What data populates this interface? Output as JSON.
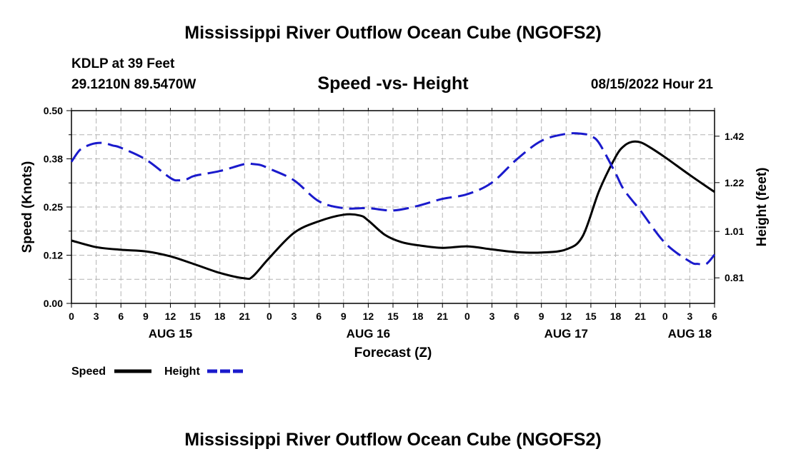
{
  "page": {
    "title": "Mississippi River Outflow Ocean Cube (NGOFS2)",
    "footer_title": "Mississippi River Outflow Ocean Cube (NGOFS2)",
    "station": "KDLP at 39 Feet",
    "coords": "29.1210N  89.5470W",
    "subtitle": "Speed -vs- Height",
    "datetime": "08/15/2022 Hour 21"
  },
  "colors": {
    "speed": "#000000",
    "height": "#1a1acc",
    "grid": "#b4b4b4"
  },
  "chart_data": {
    "type": "line",
    "title": "Speed -vs- Height",
    "xlabel": "Forecast (Z)",
    "ylabel": "Speed (Knots)",
    "y2label": "Height (feet)",
    "xlim": [
      0,
      78
    ],
    "ylim": [
      0,
      0.5
    ],
    "y2lim": [
      0.7,
      1.53
    ],
    "x_ticks": [
      0,
      3,
      6,
      9,
      12,
      15,
      18,
      21,
      24,
      27,
      30,
      33,
      36,
      39,
      42,
      45,
      48,
      51,
      54,
      57,
      60,
      63,
      66,
      69,
      72,
      75,
      78
    ],
    "x_tick_labels": [
      "0",
      "3",
      "6",
      "9",
      "12",
      "15",
      "18",
      "21",
      "0",
      "3",
      "6",
      "9",
      "12",
      "15",
      "18",
      "21",
      "0",
      "3",
      "6",
      "9",
      "12",
      "15",
      "18",
      "21",
      "0",
      "3",
      "6"
    ],
    "y_ticks": [
      0,
      0.125,
      0.25,
      0.375,
      0.5
    ],
    "y_tick_labels": [
      "0.00",
      "0.12",
      "0.25",
      "0.38",
      "0.50"
    ],
    "y2_ticks": [
      0.81,
      1.01,
      1.22,
      1.42
    ],
    "y2_tick_labels": [
      "0.81",
      "1.01",
      "1.22",
      "1.42"
    ],
    "day_labels": [
      {
        "x": 12,
        "label": "AUG 15"
      },
      {
        "x": 36,
        "label": "AUG 16"
      },
      {
        "x": 60,
        "label": "AUG 17"
      },
      {
        "x": 75,
        "label": "AUG 18"
      }
    ],
    "legend": [
      {
        "name": "Speed",
        "style": "solid"
      },
      {
        "name": "Height",
        "style": "dashed"
      }
    ],
    "series": [
      {
        "name": "Speed",
        "axis": "left",
        "style": "solid",
        "x": [
          0,
          3,
          6,
          9,
          12,
          15,
          18,
          21,
          22,
          24,
          27,
          30,
          33,
          35,
          36,
          38,
          40,
          42,
          45,
          48,
          51,
          54,
          57,
          60,
          62,
          64,
          66,
          67,
          68,
          69,
          70,
          72,
          75,
          78
        ],
        "values": [
          0.163,
          0.146,
          0.139,
          0.135,
          0.122,
          0.101,
          0.079,
          0.065,
          0.07,
          0.118,
          0.183,
          0.213,
          0.23,
          0.228,
          0.215,
          0.178,
          0.159,
          0.151,
          0.144,
          0.148,
          0.14,
          0.133,
          0.132,
          0.14,
          0.174,
          0.292,
          0.38,
          0.408,
          0.419,
          0.418,
          0.407,
          0.379,
          0.333,
          0.289
        ]
      },
      {
        "name": "Height",
        "axis": "right",
        "style": "dashed",
        "x": [
          0,
          1,
          2,
          3,
          4,
          5,
          6,
          9,
          12,
          13,
          14,
          15,
          18,
          21,
          22,
          23,
          24,
          27,
          30,
          33,
          36,
          39,
          42,
          45,
          48,
          51,
          54,
          57,
          60,
          62,
          63,
          64,
          66,
          67,
          69,
          72,
          75,
          76,
          77,
          78
        ],
        "values": [
          1.31,
          1.36,
          1.38,
          1.39,
          1.39,
          1.38,
          1.37,
          1.32,
          1.24,
          1.23,
          1.235,
          1.25,
          1.27,
          1.3,
          1.3,
          1.295,
          1.28,
          1.23,
          1.14,
          1.11,
          1.11,
          1.1,
          1.12,
          1.15,
          1.17,
          1.22,
          1.32,
          1.4,
          1.43,
          1.43,
          1.42,
          1.39,
          1.26,
          1.19,
          1.1,
          0.96,
          0.88,
          0.87,
          0.87,
          0.91
        ]
      }
    ]
  }
}
